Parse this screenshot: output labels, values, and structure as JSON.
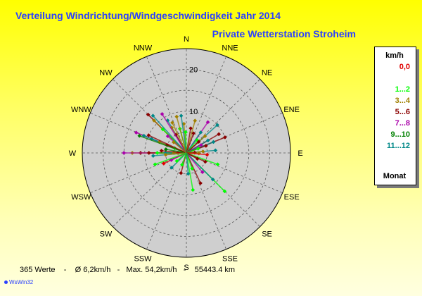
{
  "title": "Verteilung Windrichtung/Windgeschwindigkeit  Jahr 2014",
  "subtitle": "Private Wetterstation Stroheim",
  "stats_text": "365 Werte    -    Ø 6,2km/h   -   Max. 54,2km/h   -    55443.4 km",
  "credit": "WsWin32",
  "legend": {
    "header": "km/h",
    "footer": "Monat",
    "items": [
      {
        "label": "0,0",
        "color": "#e00000"
      },
      {
        "label": "",
        "color": "#000000"
      },
      {
        "label": "1...2",
        "color": "#00ff00"
      },
      {
        "label": "3...4",
        "color": "#a08000"
      },
      {
        "label": "5...6",
        "color": "#8b0000"
      },
      {
        "label": "7...8",
        "color": "#aa00aa"
      },
      {
        "label": "9...10",
        "color": "#008000"
      },
      {
        "label": "11...12",
        "color": "#008888"
      }
    ]
  },
  "chart_data": {
    "type": "polar-scatter",
    "directions": [
      "N",
      "NNE",
      "NE",
      "ENE",
      "E",
      "ESE",
      "SE",
      "SSE",
      "S",
      "SSW",
      "SW",
      "WSW",
      "W",
      "WNW",
      "NW",
      "NNW"
    ],
    "rmax": 25,
    "ring_labels": [
      "10",
      "20"
    ],
    "grid": true,
    "points": [
      {
        "dir": 270,
        "r": 11,
        "month": 6
      },
      {
        "dir": 270,
        "r": 13,
        "month": 4
      },
      {
        "dir": 270,
        "r": 15,
        "month": 7
      },
      {
        "dir": 270,
        "r": 9,
        "month": 5
      },
      {
        "dir": 270,
        "r": 7,
        "month": 2
      },
      {
        "dir": 270,
        "r": 5,
        "month": 11
      },
      {
        "dir": 270,
        "r": 3,
        "month": 3
      },
      {
        "dir": 270,
        "r": 2,
        "month": 1
      },
      {
        "dir": 275,
        "r": 6,
        "month": 5
      },
      {
        "dir": 280,
        "r": 5,
        "month": 9
      },
      {
        "dir": 265,
        "r": 8,
        "month": 12
      },
      {
        "dir": 265,
        "r": 5,
        "month": 4
      },
      {
        "dir": 292,
        "r": 13,
        "month": 7
      },
      {
        "dir": 292,
        "r": 11,
        "month": 11
      },
      {
        "dir": 292,
        "r": 9,
        "month": 12
      },
      {
        "dir": 292,
        "r": 7,
        "month": 4
      },
      {
        "dir": 292,
        "r": 5,
        "month": 5
      },
      {
        "dir": 292,
        "r": 3,
        "month": 2
      },
      {
        "dir": 290,
        "r": 12,
        "month": 9
      },
      {
        "dir": 295,
        "r": 10,
        "month": 6
      },
      {
        "dir": 315,
        "r": 13,
        "month": 5
      },
      {
        "dir": 315,
        "r": 11,
        "month": 4
      },
      {
        "dir": 315,
        "r": 8,
        "month": 2
      },
      {
        "dir": 318,
        "r": 12,
        "month": 11
      },
      {
        "dir": 312,
        "r": 6,
        "month": 7
      },
      {
        "dir": 310,
        "r": 4,
        "month": 3
      },
      {
        "dir": 330,
        "r": 9,
        "month": 11
      },
      {
        "dir": 330,
        "r": 7,
        "month": 3
      },
      {
        "dir": 330,
        "r": 5,
        "month": 5
      },
      {
        "dir": 328,
        "r": 11,
        "month": 7
      },
      {
        "dir": 335,
        "r": 8,
        "month": 4
      },
      {
        "dir": 345,
        "r": 6,
        "month": 2
      },
      {
        "dir": 345,
        "r": 9,
        "month": 3
      },
      {
        "dir": 355,
        "r": 7,
        "month": 4
      },
      {
        "dir": 358,
        "r": 5,
        "month": 2
      },
      {
        "dir": 352,
        "r": 9,
        "month": 11
      },
      {
        "dir": 10,
        "r": 6,
        "month": 6
      },
      {
        "dir": 15,
        "r": 8,
        "month": 3
      },
      {
        "dir": 20,
        "r": 5,
        "month": 5
      },
      {
        "dir": 35,
        "r": 9,
        "month": 7
      },
      {
        "dir": 35,
        "r": 6,
        "month": 11
      },
      {
        "dir": 40,
        "r": 4,
        "month": 2
      },
      {
        "dir": 48,
        "r": 10,
        "month": 12
      },
      {
        "dir": 48,
        "r": 6,
        "month": 3
      },
      {
        "dir": 48,
        "r": 4,
        "month": 5
      },
      {
        "dir": 60,
        "r": 9,
        "month": 5
      },
      {
        "dir": 60,
        "r": 6,
        "month": 11
      },
      {
        "dir": 62,
        "r": 4,
        "month": 7
      },
      {
        "dir": 68,
        "r": 10,
        "month": 6
      },
      {
        "dir": 68,
        "r": 7,
        "month": 11
      },
      {
        "dir": 70,
        "r": 5,
        "month": 5
      },
      {
        "dir": 70,
        "r": 3,
        "month": 2
      },
      {
        "dir": 85,
        "r": 7,
        "month": 12
      },
      {
        "dir": 85,
        "r": 4,
        "month": 4
      },
      {
        "dir": 88,
        "r": 2,
        "month": 6
      },
      {
        "dir": 92,
        "r": 3,
        "month": 4
      },
      {
        "dir": 95,
        "r": 5,
        "month": 1
      },
      {
        "dir": 110,
        "r": 8,
        "month": 2
      },
      {
        "dir": 115,
        "r": 5,
        "month": 6
      },
      {
        "dir": 118,
        "r": 3,
        "month": 5
      },
      {
        "dir": 135,
        "r": 13,
        "month": 2
      },
      {
        "dir": 135,
        "r": 9,
        "month": 11
      },
      {
        "dir": 140,
        "r": 6,
        "month": 7
      },
      {
        "dir": 155,
        "r": 8,
        "month": 6
      },
      {
        "dir": 160,
        "r": 4,
        "month": 2
      },
      {
        "dir": 170,
        "r": 9,
        "month": 2
      },
      {
        "dir": 175,
        "r": 5,
        "month": 11
      },
      {
        "dir": 195,
        "r": 5,
        "month": 5
      },
      {
        "dir": 200,
        "r": 3,
        "month": 2
      },
      {
        "dir": 225,
        "r": 5,
        "month": 11
      },
      {
        "dir": 230,
        "r": 3,
        "month": 2
      },
      {
        "dir": 245,
        "r": 6,
        "month": 1
      },
      {
        "dir": 245,
        "r": 4,
        "month": 7
      },
      {
        "dir": 250,
        "r": 8,
        "month": 2
      }
    ],
    "month_colors": {
      "1": "#e00000",
      "2": "#00ff00",
      "3": "#a08000",
      "4": "#a08000",
      "5": "#8b0000",
      "6": "#8b0000",
      "7": "#aa00aa",
      "8": "#aa00aa",
      "9": "#008000",
      "10": "#008000",
      "11": "#008888",
      "12": "#008888"
    }
  }
}
